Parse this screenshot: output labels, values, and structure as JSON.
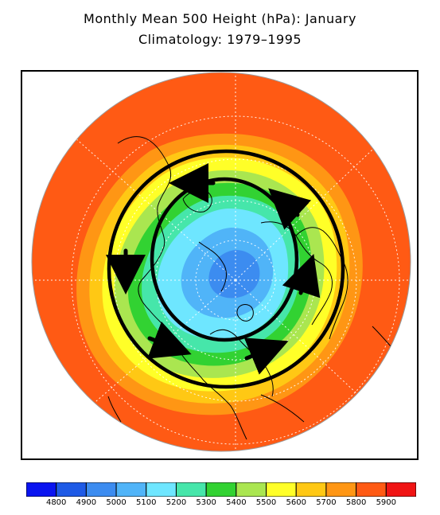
{
  "title": {
    "line1": "Monthly Mean 500 Height (hPa): January",
    "line2": "Climatology: 1979–1995"
  },
  "colors": {
    "background": "#ffffff",
    "continent_outline": "#000000",
    "circulation_rings": "#000000",
    "grid": "#ffffff"
  },
  "map": {
    "projection": "polar-stereographic",
    "hemisphere": "northern",
    "features": [
      "continent-outlines",
      "latitude-circles",
      "longitude-lines",
      "circulation-rings",
      "flow-arrows"
    ],
    "flow_direction": "counterclockwise"
  },
  "colorbar": {
    "labels": [
      "4800",
      "4900",
      "5000",
      "5100",
      "5200",
      "5300",
      "5400",
      "5500",
      "5600",
      "5700",
      "5800",
      "5900"
    ],
    "swatches": [
      "#0a14f0",
      "#1e5ae6",
      "#3c8cf0",
      "#50b4f8",
      "#6ee6ff",
      "#46e6aa",
      "#32d232",
      "#aae650",
      "#ffff28",
      "#ffc814",
      "#ff9614",
      "#ff5a14",
      "#f01414"
    ]
  }
}
